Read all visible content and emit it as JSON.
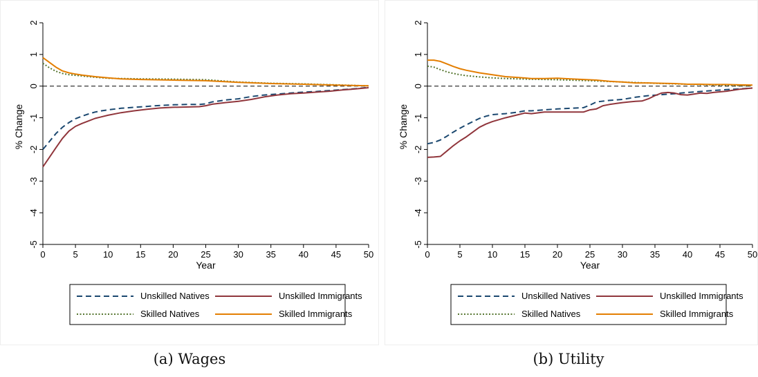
{
  "panels": [
    {
      "caption": "(a) Wages",
      "chart_data": {
        "type": "line",
        "xlabel": "Year",
        "ylabel": "% Change",
        "xlim": [
          0,
          50
        ],
        "ylim": [
          -5,
          2
        ],
        "xticks": [
          "0",
          "5",
          "10",
          "15",
          "20",
          "25",
          "30",
          "35",
          "40",
          "45",
          "50"
        ],
        "yticks": [
          "2",
          "1",
          "0",
          "-1",
          "-2",
          "-3",
          "-4",
          "-5"
        ],
        "reference_line": 0,
        "legend_position": "bottom",
        "series": [
          {
            "name": "Unskilled Natives",
            "color": "#1a476f",
            "style": "dashed",
            "x": [
              0,
              1,
              2,
              3,
              4,
              5,
              6,
              7,
              8,
              9,
              10,
              12,
              14,
              16,
              18,
              20,
              22,
              24,
              25,
              26,
              28,
              30,
              32,
              34,
              36,
              38,
              40,
              42,
              44,
              46,
              48,
              50
            ],
            "values": [
              -2.0,
              -1.75,
              -1.5,
              -1.3,
              -1.15,
              -1.03,
              -0.95,
              -0.88,
              -0.82,
              -0.78,
              -0.75,
              -0.7,
              -0.67,
              -0.64,
              -0.61,
              -0.59,
              -0.58,
              -0.58,
              -0.56,
              -0.5,
              -0.44,
              -0.4,
              -0.33,
              -0.28,
              -0.25,
              -0.22,
              -0.19,
              -0.17,
              -0.14,
              -0.11,
              -0.08,
              -0.04
            ]
          },
          {
            "name": "Unskilled Immigrants",
            "color": "#90353b",
            "style": "solid",
            "x": [
              0,
              1,
              2,
              3,
              4,
              5,
              6,
              7,
              8,
              9,
              10,
              12,
              14,
              16,
              18,
              20,
              22,
              24,
              25,
              26,
              28,
              30,
              32,
              34,
              36,
              38,
              40,
              42,
              44,
              46,
              48,
              50
            ],
            "values": [
              -2.55,
              -2.25,
              -1.95,
              -1.65,
              -1.42,
              -1.27,
              -1.18,
              -1.1,
              -1.02,
              -0.97,
              -0.92,
              -0.84,
              -0.78,
              -0.73,
              -0.69,
              -0.67,
              -0.66,
              -0.65,
              -0.62,
              -0.57,
              -0.52,
              -0.48,
              -0.42,
              -0.34,
              -0.28,
              -0.24,
              -0.22,
              -0.19,
              -0.16,
              -0.12,
              -0.09,
              -0.05
            ]
          },
          {
            "name": "Skilled Natives",
            "color": "#55752f",
            "style": "dotted",
            "x": [
              0,
              1,
              2,
              3,
              4,
              5,
              6,
              8,
              10,
              12,
              15,
              20,
              25,
              30,
              35,
              40,
              45,
              50
            ],
            "values": [
              0.72,
              0.58,
              0.47,
              0.4,
              0.36,
              0.34,
              0.32,
              0.28,
              0.25,
              0.24,
              0.23,
              0.22,
              0.2,
              0.13,
              0.09,
              0.07,
              0.04,
              0.01
            ]
          },
          {
            "name": "Skilled Immigrants",
            "color": "#e37e00",
            "style": "solid",
            "x": [
              0,
              1,
              2,
              3,
              4,
              5,
              6,
              8,
              10,
              12,
              15,
              20,
              25,
              30,
              35,
              40,
              45,
              50
            ],
            "values": [
              0.9,
              0.75,
              0.6,
              0.48,
              0.42,
              0.38,
              0.35,
              0.3,
              0.26,
              0.23,
              0.21,
              0.19,
              0.17,
              0.12,
              0.08,
              0.06,
              0.03,
              0.01
            ]
          }
        ]
      }
    },
    {
      "caption": "(b) Utility",
      "chart_data": {
        "type": "line",
        "xlabel": "Year",
        "ylabel": "% Change",
        "xlim": [
          0,
          50
        ],
        "ylim": [
          -5,
          2
        ],
        "xticks": [
          "0",
          "5",
          "10",
          "15",
          "20",
          "25",
          "30",
          "35",
          "40",
          "45",
          "50"
        ],
        "yticks": [
          "2",
          "1",
          "0",
          "-1",
          "-2",
          "-3",
          "-4",
          "-5"
        ],
        "reference_line": 0,
        "legend_position": "bottom",
        "series": [
          {
            "name": "Unskilled Natives",
            "color": "#1a476f",
            "style": "dashed",
            "x": [
              0,
              1,
              2,
              3,
              4,
              5,
              6,
              7,
              8,
              9,
              10,
              12,
              14,
              15,
              16,
              18,
              20,
              22,
              24,
              25,
              26,
              28,
              30,
              32,
              34,
              36,
              38,
              40,
              42,
              44,
              46,
              48,
              50
            ],
            "values": [
              -1.82,
              -1.78,
              -1.7,
              -1.58,
              -1.45,
              -1.33,
              -1.22,
              -1.12,
              -1.02,
              -0.95,
              -0.9,
              -0.87,
              -0.82,
              -0.78,
              -0.78,
              -0.75,
              -0.72,
              -0.7,
              -0.68,
              -0.6,
              -0.5,
              -0.45,
              -0.42,
              -0.35,
              -0.3,
              -0.27,
              -0.24,
              -0.2,
              -0.17,
              -0.14,
              -0.11,
              -0.09,
              -0.06
            ]
          },
          {
            "name": "Unskilled Immigrants",
            "color": "#90353b",
            "style": "solid",
            "x": [
              0,
              1,
              2,
              3,
              4,
              5,
              6,
              7,
              8,
              9,
              10,
              12,
              14,
              15,
              16,
              18,
              20,
              22,
              24,
              25,
              26,
              27,
              28,
              29,
              30,
              31,
              32,
              33,
              34,
              35,
              36,
              37,
              38,
              39,
              40,
              41,
              42,
              43,
              44,
              46,
              48,
              50
            ],
            "values": [
              -2.25,
              -2.24,
              -2.22,
              -2.05,
              -1.88,
              -1.73,
              -1.6,
              -1.45,
              -1.3,
              -1.2,
              -1.12,
              -1.0,
              -0.9,
              -0.85,
              -0.87,
              -0.82,
              -0.82,
              -0.82,
              -0.82,
              -0.75,
              -0.72,
              -0.62,
              -0.58,
              -0.55,
              -0.52,
              -0.5,
              -0.48,
              -0.47,
              -0.4,
              -0.3,
              -0.22,
              -0.2,
              -0.22,
              -0.27,
              -0.28,
              -0.25,
              -0.22,
              -0.23,
              -0.2,
              -0.16,
              -0.1,
              -0.06
            ]
          },
          {
            "name": "Skilled Natives",
            "color": "#55752f",
            "style": "dotted",
            "x": [
              0,
              1,
              2,
              3,
              4,
              5,
              6,
              8,
              10,
              12,
              15,
              20,
              25,
              30,
              35,
              40,
              45,
              50
            ],
            "values": [
              0.63,
              0.6,
              0.52,
              0.45,
              0.4,
              0.36,
              0.33,
              0.29,
              0.26,
              0.24,
              0.22,
              0.2,
              0.17,
              0.13,
              0.09,
              0.06,
              0.03,
              0.01
            ]
          },
          {
            "name": "Skilled Immigrants",
            "color": "#e37e00",
            "style": "solid",
            "x": [
              0,
              1,
              2,
              3,
              4,
              5,
              6,
              8,
              10,
              12,
              14,
              16,
              18,
              20,
              22,
              24,
              26,
              28,
              30,
              32,
              34,
              36,
              38,
              40,
              42,
              44,
              46,
              48,
              50
            ],
            "values": [
              0.82,
              0.82,
              0.78,
              0.7,
              0.62,
              0.55,
              0.5,
              0.42,
              0.36,
              0.3,
              0.27,
              0.24,
              0.24,
              0.25,
              0.23,
              0.21,
              0.19,
              0.15,
              0.13,
              0.1,
              0.1,
              0.09,
              0.08,
              0.06,
              0.06,
              0.05,
              0.05,
              0.04,
              0.03
            ]
          }
        ]
      }
    }
  ]
}
